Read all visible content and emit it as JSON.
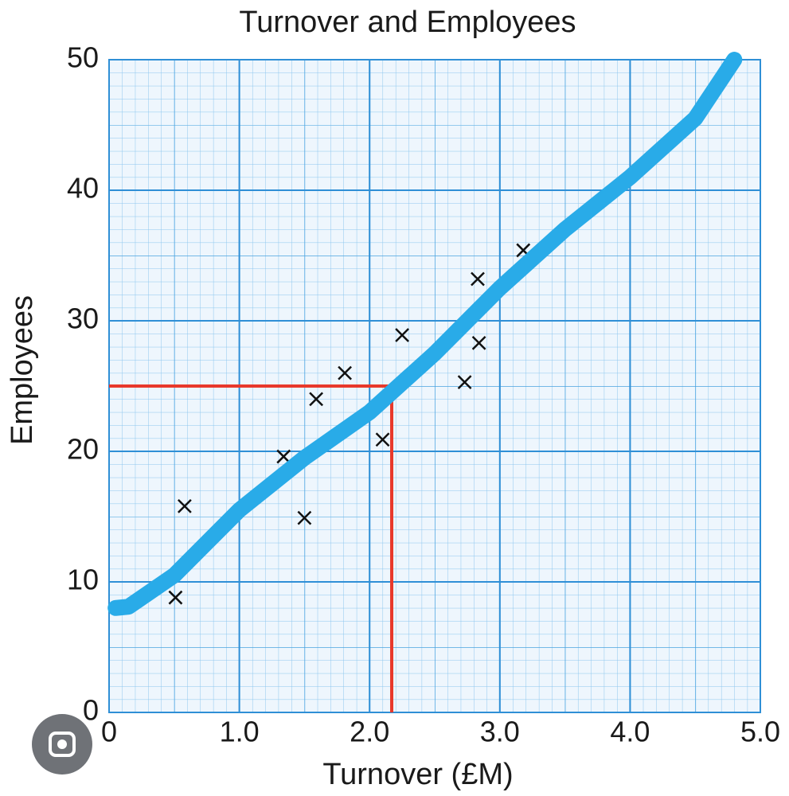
{
  "chart_data": {
    "type": "scatter",
    "title": "Turnover and Employees",
    "x_label": "Turnover (£M)",
    "y_label": "Employees",
    "xlim": [
      0,
      5
    ],
    "ylim": [
      0,
      50
    ],
    "xticks": [
      0,
      {
        "value": 1,
        "label": "1.0"
      },
      {
        "value": 2,
        "label": "2.0"
      },
      {
        "value": 3,
        "label": "3.0"
      },
      {
        "value": 4,
        "label": "4.0"
      },
      {
        "value": 5,
        "label": "5.0"
      }
    ],
    "yticks": [
      0,
      10,
      20,
      30,
      40,
      50
    ],
    "grid": true,
    "series": [
      {
        "type": "scatter",
        "marker": "x",
        "color": "#111111",
        "x": [
          0.51,
          0.58,
          1.34,
          1.5,
          1.59,
          1.81,
          2.1,
          2.25,
          2.73,
          2.84,
          2.83,
          3.18
        ],
        "values": [
          8.8,
          15.8,
          19.6,
          14.9,
          24.0,
          26.0,
          20.9,
          28.9,
          25.3,
          28.3,
          33.2,
          35.4
        ]
      },
      {
        "type": "line",
        "color": "#29abe8",
        "x": [
          0.05,
          0.15,
          0.5,
          1.0,
          1.5,
          2.0,
          2.5,
          3.0,
          3.5,
          4.0,
          4.5,
          4.8
        ],
        "values": [
          8.0,
          8.1,
          10.5,
          15.5,
          19.5,
          23.0,
          27.5,
          32.5,
          37.0,
          41.0,
          45.5,
          50.0
        ]
      }
    ],
    "reference": {
      "x": 2.17,
      "y": 25,
      "color": "#e8392b"
    }
  }
}
